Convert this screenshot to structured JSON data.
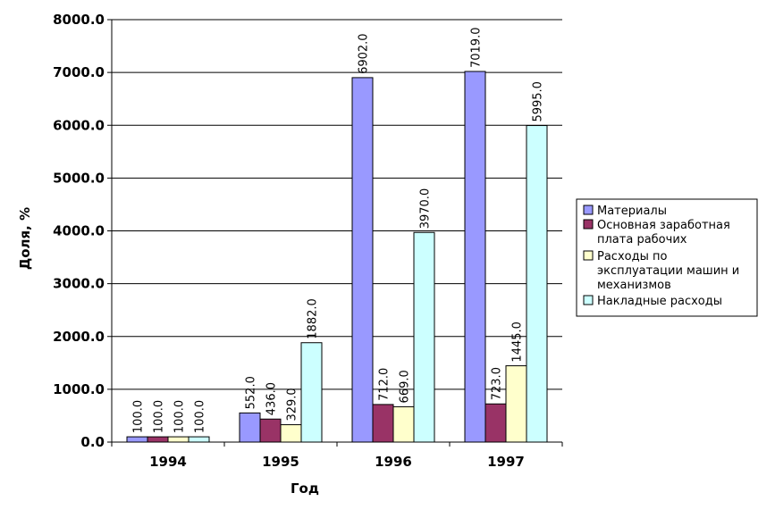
{
  "chart_data": {
    "type": "bar",
    "title": "",
    "xlabel": "Год",
    "ylabel": "Доля, %",
    "categories": [
      "1994",
      "1995",
      "1996",
      "1997"
    ],
    "series": [
      {
        "name": "Материалы",
        "values": [
          100.0,
          552.0,
          6902.0,
          7019.0
        ],
        "color": "#9999ff"
      },
      {
        "name": "Основная заработная плата рабочих",
        "legend_lines": [
          "Основная заработная",
          "плата рабочих"
        ],
        "values": [
          100.0,
          436.0,
          712.0,
          723.0
        ],
        "color": "#993366"
      },
      {
        "name": "Расходы по эксплуатации машин и механизмов",
        "legend_lines": [
          "Расходы по",
          "эксплуатации машин и",
          "механизмов"
        ],
        "values": [
          100.0,
          329.0,
          669.0,
          1445.0
        ],
        "color": "#ffffcc"
      },
      {
        "name": "Накладные расходы",
        "legend_lines": [
          "Накладные расходы"
        ],
        "values": [
          100.0,
          1882.0,
          3970.0,
          5995.0
        ],
        "color": "#ccffff"
      }
    ],
    "data_labels": [
      [
        "100.0",
        "552.0",
        "6902.0",
        "7019.0"
      ],
      [
        "100.0",
        "436.0",
        "712.0",
        "723.0"
      ],
      [
        "100.0",
        "329.0",
        "669.0",
        "1445.0"
      ],
      [
        "100.0",
        "1882.0",
        "3970.0",
        "5995.0"
      ]
    ],
    "ylim": [
      0,
      8000
    ],
    "yticks": [
      "0.0",
      "1000.0",
      "2000.0",
      "3000.0",
      "4000.0",
      "5000.0",
      "6000.0",
      "7000.0",
      "8000.0"
    ],
    "grid": true,
    "legend_position": "right"
  }
}
